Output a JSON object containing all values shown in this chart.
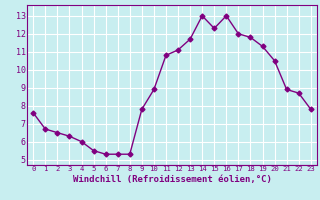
{
  "x": [
    0,
    1,
    2,
    3,
    4,
    5,
    6,
    7,
    8,
    9,
    10,
    11,
    12,
    13,
    14,
    15,
    16,
    17,
    18,
    19,
    20,
    21,
    22,
    23
  ],
  "y": [
    7.6,
    6.7,
    6.5,
    6.3,
    6.0,
    5.5,
    5.3,
    5.3,
    5.3,
    7.8,
    8.9,
    10.8,
    11.1,
    11.7,
    13.0,
    12.3,
    13.0,
    12.0,
    11.8,
    11.3,
    10.5,
    8.9,
    8.7,
    7.8
  ],
  "line_color": "#800080",
  "marker": "D",
  "marker_size": 2.5,
  "bg_color": "#c8eef0",
  "grid_color": "#ffffff",
  "xlabel": "Windchill (Refroidissement éolien,°C)",
  "ylabel_ticks": [
    5,
    6,
    7,
    8,
    9,
    10,
    11,
    12,
    13
  ],
  "xlim": [
    -0.5,
    23.5
  ],
  "ylim": [
    4.7,
    13.6
  ],
  "xticks": [
    0,
    1,
    2,
    3,
    4,
    5,
    6,
    7,
    8,
    9,
    10,
    11,
    12,
    13,
    14,
    15,
    16,
    17,
    18,
    19,
    20,
    21,
    22,
    23
  ],
  "spine_color": "#800080",
  "tick_color": "#800080",
  "xlabel_color": "#800080",
  "xlabel_fontsize": 6.5,
  "tick_fontsize_x": 5.2,
  "tick_fontsize_y": 6.0
}
